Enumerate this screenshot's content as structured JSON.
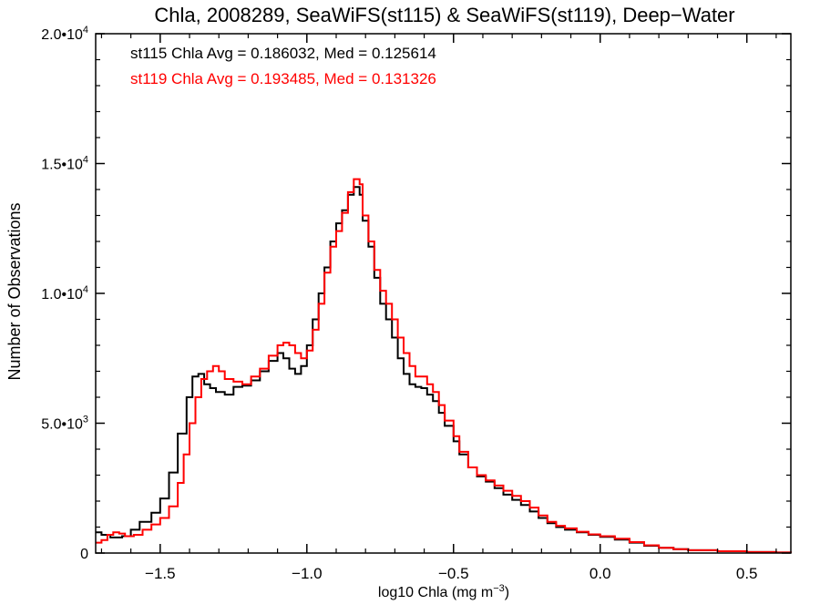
{
  "chart_data": {
    "type": "line",
    "step": true,
    "title": "Chla, 2008289, SeaWiFS(st115) & SeaWiFS(st119), Deep−Water",
    "xlabel_main": "log10 Chla (mg m",
    "xlabel_sup": "−3",
    "xlabel_close": ")",
    "ylabel": "Number of Observations",
    "xlim": [
      -1.72,
      0.65
    ],
    "ylim": [
      0,
      20000
    ],
    "x_ticks": [
      {
        "value": -1.5,
        "label": "−1.5"
      },
      {
        "value": -1.0,
        "label": "−1.0"
      },
      {
        "value": -0.5,
        "label": "−0.5"
      },
      {
        "value": 0.0,
        "label": "0.0"
      },
      {
        "value": 0.5,
        "label": "0.5"
      }
    ],
    "y_ticks": [
      {
        "value": 0,
        "mant": "0",
        "exp": ""
      },
      {
        "value": 5000,
        "mant": "5.0•10",
        "exp": "3"
      },
      {
        "value": 10000,
        "mant": "1.0•10",
        "exp": "4"
      },
      {
        "value": 15000,
        "mant": "1.5•10",
        "exp": "4"
      },
      {
        "value": 20000,
        "mant": "2.0•10",
        "exp": "4"
      }
    ],
    "legend": [
      {
        "text": "st115 Chla Avg = 0.186032, Med = 0.125614",
        "color": "#000000"
      },
      {
        "text": "st119 Chla Avg = 0.193485, Med = 0.131326",
        "color": "#ff0000"
      }
    ],
    "series": [
      {
        "name": "st115",
        "color": "#000000",
        "points": [
          [
            -1.72,
            800
          ],
          [
            -1.7,
            700
          ],
          [
            -1.67,
            600
          ],
          [
            -1.63,
            650
          ],
          [
            -1.6,
            900
          ],
          [
            -1.57,
            1200
          ],
          [
            -1.53,
            1550
          ],
          [
            -1.5,
            2100
          ],
          [
            -1.47,
            3100
          ],
          [
            -1.44,
            4600
          ],
          [
            -1.41,
            6000
          ],
          [
            -1.39,
            6800
          ],
          [
            -1.37,
            6900
          ],
          [
            -1.35,
            6500
          ],
          [
            -1.33,
            6350
          ],
          [
            -1.31,
            6200
          ],
          [
            -1.28,
            6100
          ],
          [
            -1.25,
            6400
          ],
          [
            -1.22,
            6450
          ],
          [
            -1.19,
            6650
          ],
          [
            -1.16,
            7000
          ],
          [
            -1.13,
            7400
          ],
          [
            -1.1,
            7700
          ],
          [
            -1.08,
            7500
          ],
          [
            -1.06,
            7100
          ],
          [
            -1.04,
            6900
          ],
          [
            -1.02,
            7200
          ],
          [
            -1.0,
            8000
          ],
          [
            -0.98,
            9000
          ],
          [
            -0.96,
            10000
          ],
          [
            -0.94,
            11000
          ],
          [
            -0.92,
            12000
          ],
          [
            -0.9,
            12700
          ],
          [
            -0.88,
            13200
          ],
          [
            -0.86,
            13800
          ],
          [
            -0.84,
            14100
          ],
          [
            -0.82,
            13800
          ],
          [
            -0.81,
            12800
          ],
          [
            -0.79,
            11800
          ],
          [
            -0.77,
            10600
          ],
          [
            -0.75,
            9600
          ],
          [
            -0.73,
            9000
          ],
          [
            -0.71,
            8300
          ],
          [
            -0.69,
            7500
          ],
          [
            -0.67,
            6900
          ],
          [
            -0.65,
            6500
          ],
          [
            -0.63,
            6400
          ],
          [
            -0.61,
            6350
          ],
          [
            -0.59,
            6100
          ],
          [
            -0.57,
            5850
          ],
          [
            -0.55,
            5400
          ],
          [
            -0.53,
            4900
          ],
          [
            -0.5,
            4300
          ],
          [
            -0.48,
            3800
          ],
          [
            -0.45,
            3300
          ],
          [
            -0.42,
            2950
          ],
          [
            -0.39,
            2750
          ],
          [
            -0.36,
            2500
          ],
          [
            -0.33,
            2250
          ],
          [
            -0.3,
            2050
          ],
          [
            -0.27,
            1850
          ],
          [
            -0.24,
            1600
          ],
          [
            -0.21,
            1350
          ],
          [
            -0.18,
            1150
          ],
          [
            -0.15,
            1000
          ],
          [
            -0.12,
            900
          ],
          [
            -0.08,
            800
          ],
          [
            -0.04,
            700
          ],
          [
            0.0,
            620
          ],
          [
            0.05,
            520
          ],
          [
            0.1,
            400
          ],
          [
            0.15,
            280
          ],
          [
            0.2,
            200
          ],
          [
            0.25,
            150
          ],
          [
            0.3,
            110
          ],
          [
            0.4,
            70
          ],
          [
            0.5,
            40
          ],
          [
            0.6,
            20
          ],
          [
            0.65,
            10
          ]
        ]
      },
      {
        "name": "st119",
        "color": "#ff0000",
        "points": [
          [
            -1.72,
            400
          ],
          [
            -1.7,
            500
          ],
          [
            -1.68,
            700
          ],
          [
            -1.66,
            800
          ],
          [
            -1.64,
            750
          ],
          [
            -1.62,
            650
          ],
          [
            -1.59,
            700
          ],
          [
            -1.56,
            900
          ],
          [
            -1.53,
            1100
          ],
          [
            -1.5,
            1350
          ],
          [
            -1.47,
            1800
          ],
          [
            -1.44,
            2700
          ],
          [
            -1.42,
            3800
          ],
          [
            -1.4,
            5000
          ],
          [
            -1.38,
            6000
          ],
          [
            -1.36,
            6700
          ],
          [
            -1.34,
            7000
          ],
          [
            -1.32,
            7200
          ],
          [
            -1.3,
            7000
          ],
          [
            -1.28,
            6700
          ],
          [
            -1.25,
            6600
          ],
          [
            -1.22,
            6500
          ],
          [
            -1.19,
            6800
          ],
          [
            -1.16,
            7100
          ],
          [
            -1.13,
            7600
          ],
          [
            -1.1,
            8000
          ],
          [
            -1.08,
            8100
          ],
          [
            -1.06,
            8000
          ],
          [
            -1.04,
            7700
          ],
          [
            -1.02,
            7500
          ],
          [
            -1.0,
            7800
          ],
          [
            -0.98,
            8600
          ],
          [
            -0.96,
            9600
          ],
          [
            -0.94,
            10800
          ],
          [
            -0.92,
            11800
          ],
          [
            -0.9,
            12400
          ],
          [
            -0.88,
            13100
          ],
          [
            -0.86,
            13900
          ],
          [
            -0.84,
            14400
          ],
          [
            -0.82,
            14200
          ],
          [
            -0.81,
            13000
          ],
          [
            -0.79,
            12000
          ],
          [
            -0.77,
            10900
          ],
          [
            -0.75,
            10100
          ],
          [
            -0.73,
            9600
          ],
          [
            -0.71,
            9000
          ],
          [
            -0.69,
            8300
          ],
          [
            -0.67,
            7700
          ],
          [
            -0.65,
            7200
          ],
          [
            -0.63,
            6800
          ],
          [
            -0.61,
            6800
          ],
          [
            -0.59,
            6500
          ],
          [
            -0.57,
            6200
          ],
          [
            -0.55,
            5700
          ],
          [
            -0.53,
            5100
          ],
          [
            -0.5,
            4500
          ],
          [
            -0.48,
            3900
          ],
          [
            -0.45,
            3300
          ],
          [
            -0.42,
            3000
          ],
          [
            -0.39,
            2800
          ],
          [
            -0.36,
            2600
          ],
          [
            -0.33,
            2400
          ],
          [
            -0.3,
            2200
          ],
          [
            -0.27,
            2000
          ],
          [
            -0.24,
            1750
          ],
          [
            -0.21,
            1450
          ],
          [
            -0.18,
            1200
          ],
          [
            -0.15,
            1050
          ],
          [
            -0.12,
            950
          ],
          [
            -0.08,
            820
          ],
          [
            -0.04,
            720
          ],
          [
            0.0,
            650
          ],
          [
            0.05,
            550
          ],
          [
            0.1,
            420
          ],
          [
            0.15,
            300
          ],
          [
            0.2,
            200
          ],
          [
            0.25,
            150
          ],
          [
            0.3,
            110
          ],
          [
            0.4,
            70
          ],
          [
            0.5,
            40
          ],
          [
            0.6,
            20
          ],
          [
            0.65,
            10
          ]
        ]
      }
    ]
  }
}
